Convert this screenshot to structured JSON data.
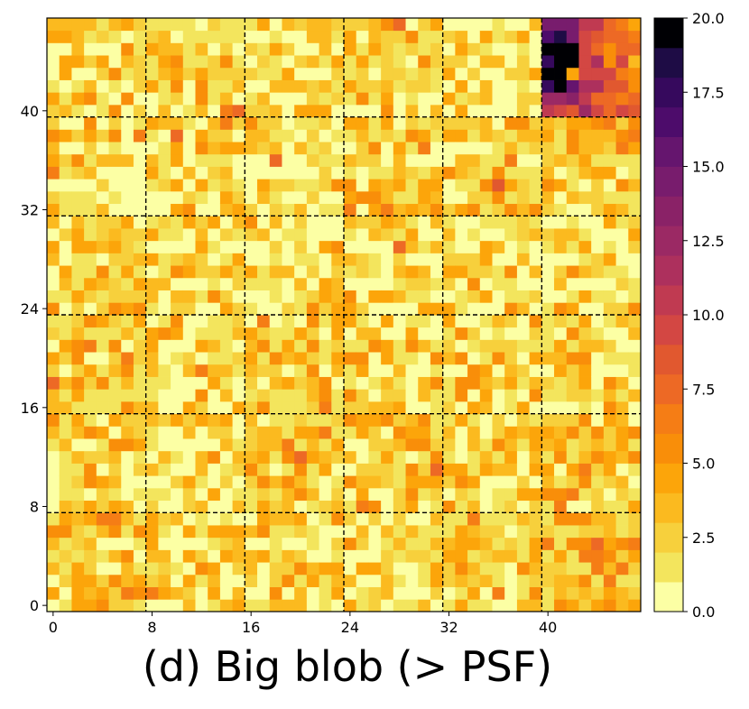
{
  "caption": "(d) Big blob (> PSF)",
  "chart_data": {
    "type": "heatmap",
    "title": "",
    "xlabel": "",
    "ylabel": "",
    "grid_size": 48,
    "xlim": [
      -0.5,
      47.5
    ],
    "ylim": [
      -0.5,
      47.5
    ],
    "x_ticks": [
      0,
      8,
      16,
      24,
      32,
      40
    ],
    "y_ticks": [
      0,
      8,
      16,
      24,
      32,
      40
    ],
    "block_size": 8,
    "block_divider_lines": [
      7.5,
      15.5,
      23.5,
      31.5,
      39.5
    ],
    "colormap": "inferno_r",
    "color_levels": 20,
    "color_range": [
      0.0,
      20.0
    ],
    "colorbar_ticks": [
      "0.0",
      "2.5",
      "5.0",
      "7.5",
      "10.0",
      "12.5",
      "15.0",
      "17.5",
      "20.0"
    ],
    "highlight_region": {
      "description_values": "block cols 40-47, rows 40-47 has values 5-20; peak near cols 40-42, rows 42-46",
      "peak_value": 20.0
    },
    "background_value_range": [
      0.0,
      6.0
    ]
  }
}
